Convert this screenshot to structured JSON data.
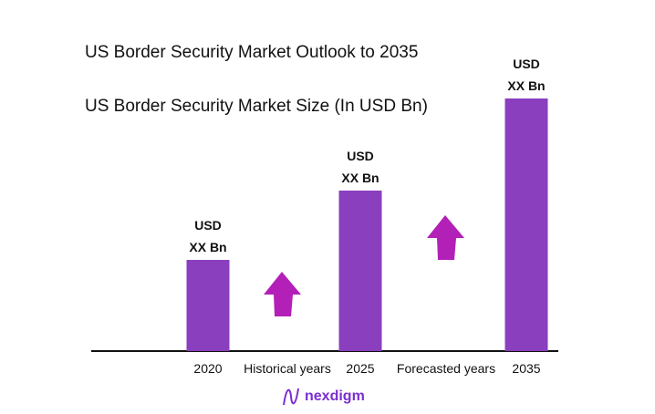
{
  "chart_data": {
    "type": "bar",
    "title": "US Border Security Market Outlook to 2035",
    "subtitle": "US Border Security Market Size (In USD Bn)",
    "categories": [
      "2020",
      "2025",
      "2035"
    ],
    "values_relative": [
      1.0,
      1.76,
      2.77
    ],
    "data_labels": [
      [
        "USD",
        "XX Bn"
      ],
      [
        "USD",
        "XX Bn"
      ],
      [
        "USD",
        "XX Bn"
      ]
    ],
    "period_labels": [
      "Historical years",
      "Forecasted years"
    ],
    "bar_color": "#8a3fbf",
    "arrow_color": "#b320b8",
    "grid": false
  },
  "brand": "nexdigm"
}
